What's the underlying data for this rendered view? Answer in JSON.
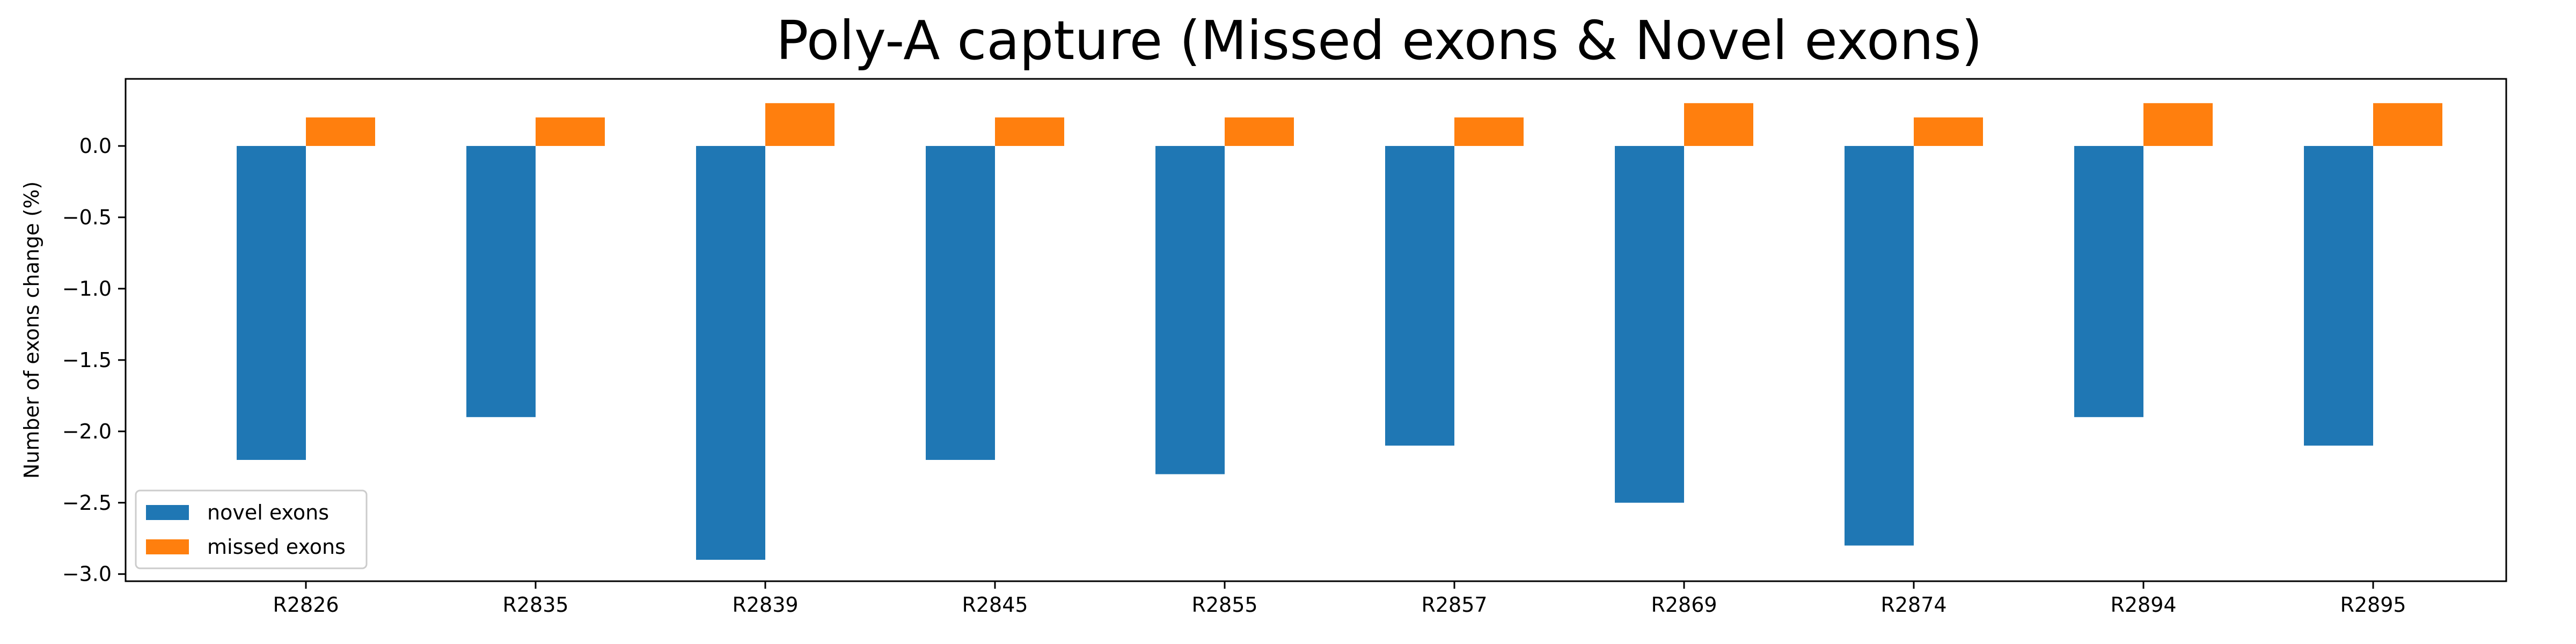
{
  "chart_data": {
    "type": "bar",
    "title": "Poly-A capture (Missed exons & Novel exons)",
    "xlabel": "",
    "ylabel": "Number of exons change (%)",
    "categories": [
      "R2826",
      "R2835",
      "R2839",
      "R2845",
      "R2855",
      "R2857",
      "R2869",
      "R2874",
      "R2894",
      "R2895"
    ],
    "series": [
      {
        "name": "novel exons",
        "color": "#1f77b4",
        "values": [
          -2.2,
          -1.9,
          -2.9,
          -2.2,
          -2.3,
          -2.1,
          -2.5,
          -2.8,
          -1.9,
          -2.1
        ]
      },
      {
        "name": "missed exons",
        "color": "#ff7f0e",
        "values": [
          0.2,
          0.2,
          0.3,
          0.2,
          0.2,
          0.2,
          0.3,
          0.2,
          0.3,
          0.3
        ]
      }
    ],
    "ylim": [
      -3.05,
      0.47
    ],
    "yticks": [
      {
        "value": 0.0,
        "label": "0.0"
      },
      {
        "value": -0.5,
        "label": "−0.5"
      },
      {
        "value": -1.0,
        "label": "−1.0"
      },
      {
        "value": -1.5,
        "label": "−1.5"
      },
      {
        "value": -2.0,
        "label": "−2.0"
      },
      {
        "value": -2.5,
        "label": "−2.5"
      },
      {
        "value": -3.0,
        "label": "−3.0"
      }
    ],
    "grid": false,
    "legend_position": "lower-left"
  }
}
